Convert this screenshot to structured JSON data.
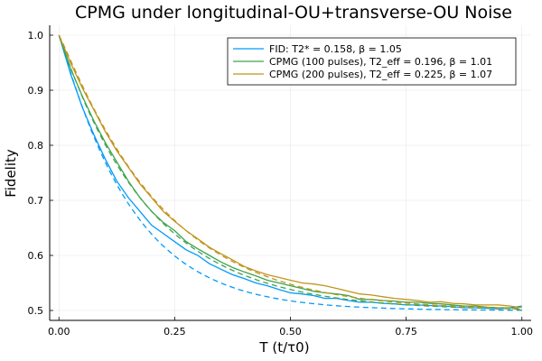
{
  "chart_data": {
    "type": "line",
    "title": "CPMG under longitudinal-OU+transverse-OU Noise",
    "xlabel": "T (t/τ0)",
    "ylabel": "Fidelity",
    "xlim": [
      -0.02,
      1.02
    ],
    "ylim": [
      0.482,
      1.018
    ],
    "xticks": [
      0.0,
      0.25,
      0.5,
      0.75,
      1.0
    ],
    "xtick_labels": [
      "0.00",
      "0.25",
      "0.50",
      "0.75",
      "1.00"
    ],
    "yticks": [
      0.5,
      0.6,
      0.7,
      0.8,
      0.9,
      1.0
    ],
    "ytick_labels": [
      "0.5",
      "0.6",
      "0.7",
      "0.8",
      "0.9",
      "1.0"
    ],
    "grid": true,
    "legend_position": "top-right",
    "series": [
      {
        "name": "FID: T2* = 0.158, β = 1.05",
        "color": "#009AFA",
        "fit": {
          "tau": 0.158,
          "beta": 1.05,
          "floor": 0.5,
          "dashed": true
        },
        "x": [
          0.0,
          0.025,
          0.05,
          0.075,
          0.1,
          0.125,
          0.15,
          0.175,
          0.2,
          0.225,
          0.25,
          0.275,
          0.3,
          0.325,
          0.35,
          0.375,
          0.4,
          0.425,
          0.45,
          0.475,
          0.5,
          0.525,
          0.55,
          0.575,
          0.6,
          0.625,
          0.65,
          0.675,
          0.7,
          0.725,
          0.75,
          0.775,
          0.8,
          0.825,
          0.85,
          0.875,
          0.9,
          0.925,
          0.95,
          0.975,
          1.0
        ],
        "y": [
          1.0,
          0.93,
          0.87,
          0.82,
          0.775,
          0.735,
          0.705,
          0.68,
          0.655,
          0.64,
          0.625,
          0.61,
          0.6,
          0.585,
          0.575,
          0.565,
          0.558,
          0.55,
          0.545,
          0.538,
          0.532,
          0.53,
          0.527,
          0.522,
          0.522,
          0.518,
          0.515,
          0.515,
          0.513,
          0.512,
          0.51,
          0.51,
          0.509,
          0.508,
          0.507,
          0.505,
          0.505,
          0.504,
          0.503,
          0.505,
          0.508
        ]
      },
      {
        "name": "CPMG (100 pulses), T2_eff = 0.196, β = 1.01",
        "color": "#3DA44D",
        "fit": {
          "tau": 0.196,
          "beta": 1.01,
          "floor": 0.5,
          "dashed": true
        },
        "x": [
          0.0,
          0.025,
          0.05,
          0.075,
          0.1,
          0.125,
          0.15,
          0.175,
          0.2,
          0.225,
          0.25,
          0.275,
          0.3,
          0.325,
          0.35,
          0.375,
          0.4,
          0.425,
          0.45,
          0.475,
          0.5,
          0.525,
          0.55,
          0.575,
          0.6,
          0.625,
          0.65,
          0.675,
          0.7,
          0.725,
          0.75,
          0.775,
          0.8,
          0.825,
          0.85,
          0.875,
          0.9,
          0.925,
          0.95,
          0.975,
          1.0
        ],
        "y": [
          1.0,
          0.94,
          0.89,
          0.845,
          0.805,
          0.77,
          0.735,
          0.705,
          0.68,
          0.66,
          0.645,
          0.625,
          0.612,
          0.6,
          0.588,
          0.578,
          0.57,
          0.563,
          0.555,
          0.55,
          0.545,
          0.54,
          0.535,
          0.532,
          0.53,
          0.527,
          0.52,
          0.52,
          0.518,
          0.517,
          0.515,
          0.515,
          0.513,
          0.512,
          0.51,
          0.508,
          0.508,
          0.506,
          0.505,
          0.505,
          0.5
        ]
      },
      {
        "name": "CPMG (200 pulses), T2_eff = 0.225, β = 1.07",
        "color": "#C2941E",
        "fit": {
          "tau": 0.225,
          "beta": 1.07,
          "floor": 0.5,
          "dashed": true
        },
        "x": [
          0.0,
          0.025,
          0.05,
          0.075,
          0.1,
          0.125,
          0.15,
          0.175,
          0.2,
          0.225,
          0.25,
          0.275,
          0.3,
          0.325,
          0.35,
          0.375,
          0.4,
          0.425,
          0.45,
          0.475,
          0.5,
          0.525,
          0.55,
          0.575,
          0.6,
          0.625,
          0.65,
          0.675,
          0.7,
          0.725,
          0.75,
          0.775,
          0.8,
          0.825,
          0.85,
          0.875,
          0.9,
          0.925,
          0.95,
          0.975,
          1.0
        ],
        "y": [
          1.0,
          0.95,
          0.905,
          0.865,
          0.825,
          0.79,
          0.76,
          0.73,
          0.705,
          0.68,
          0.662,
          0.645,
          0.63,
          0.615,
          0.603,
          0.592,
          0.58,
          0.572,
          0.565,
          0.56,
          0.555,
          0.55,
          0.548,
          0.545,
          0.54,
          0.535,
          0.53,
          0.528,
          0.525,
          0.522,
          0.52,
          0.518,
          0.515,
          0.516,
          0.513,
          0.512,
          0.51,
          0.51,
          0.51,
          0.508,
          0.505
        ]
      }
    ]
  }
}
